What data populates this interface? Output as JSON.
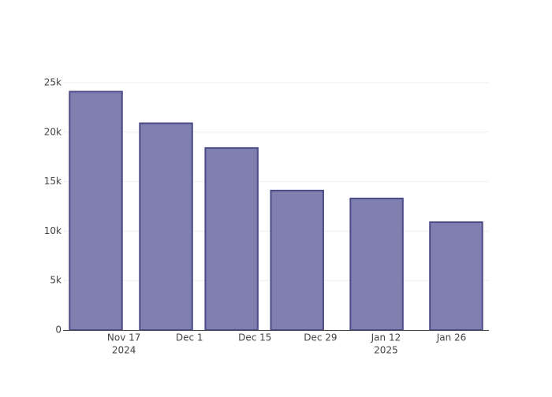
{
  "chart_data": {
    "type": "bar",
    "x": [
      "2024-11-11",
      "2024-11-26",
      "2024-12-10",
      "2024-12-24",
      "2025-01-10",
      "2025-01-27"
    ],
    "values": [
      24100,
      20900,
      18400,
      14100,
      13300,
      10900
    ],
    "color": "#7f7fb0",
    "line_color": "#4b4b87",
    "xlim": [
      "2024-11-04",
      "2025-02-03"
    ],
    "xticks": [
      {
        "value": "2024-11-17",
        "label": "Nov 17",
        "year": "2024"
      },
      {
        "value": "2024-12-01",
        "label": "Dec 1"
      },
      {
        "value": "2024-12-15",
        "label": "Dec 15"
      },
      {
        "value": "2024-12-29",
        "label": "Dec 29"
      },
      {
        "value": "2025-01-12",
        "label": "Jan 12",
        "year": "2025"
      },
      {
        "value": "2025-01-26",
        "label": "Jan 26"
      }
    ],
    "ylim": [
      0,
      25000
    ],
    "yticks": [
      0,
      {
        "value": 5000,
        "label": "5k"
      },
      {
        "value": 10000,
        "label": "10k"
      },
      {
        "value": 15000,
        "label": "15k"
      },
      {
        "value": 20000,
        "label": "20k"
      },
      {
        "value": 25000,
        "label": "25k"
      }
    ],
    "grid": true
  }
}
